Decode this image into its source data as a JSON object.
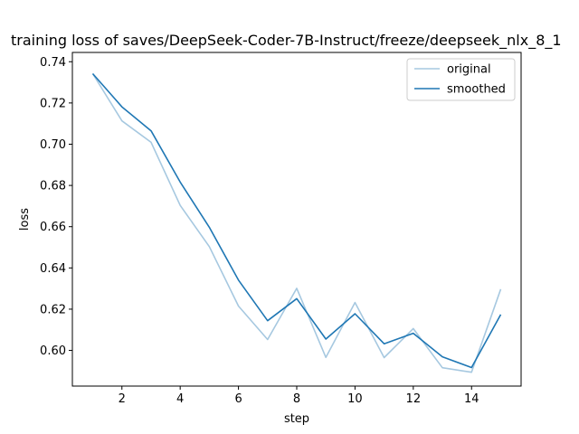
{
  "chart_data": {
    "type": "line",
    "title": "training loss of saves/DeepSeek-Coder-7B-Instruct/freeze/deepseek_nlx_8_1",
    "xlabel": "step",
    "ylabel": "loss",
    "xlim": [
      0.3,
      15.7
    ],
    "ylim": [
      0.5827,
      0.7445
    ],
    "xticks": [
      2,
      4,
      6,
      8,
      10,
      12,
      14
    ],
    "yticks": [
      0.6,
      0.62,
      0.64,
      0.66,
      0.68,
      0.7,
      0.72,
      0.74
    ],
    "ytick_labels": [
      "0.60",
      "0.62",
      "0.64",
      "0.66",
      "0.68",
      "0.70",
      "0.72",
      "0.74"
    ],
    "x": [
      1,
      2,
      3,
      4,
      5,
      6,
      7,
      8,
      9,
      10,
      11,
      12,
      13,
      14,
      15
    ],
    "series": [
      {
        "name": "original",
        "color": "#a6c8e0",
        "values": [
          0.7342,
          0.7113,
          0.7009,
          0.6703,
          0.6503,
          0.6215,
          0.6053,
          0.6301,
          0.5966,
          0.6232,
          0.5965,
          0.6106,
          0.5916,
          0.5894,
          0.6297
        ]
      },
      {
        "name": "smoothed",
        "color": "#1f77b4",
        "values": [
          0.7342,
          0.7181,
          0.7065,
          0.6816,
          0.6597,
          0.6341,
          0.6144,
          0.6251,
          0.6055,
          0.6178,
          0.6032,
          0.6083,
          0.5969,
          0.5917,
          0.6174
        ]
      }
    ],
    "grid": false,
    "legend_position": "top-right"
  }
}
